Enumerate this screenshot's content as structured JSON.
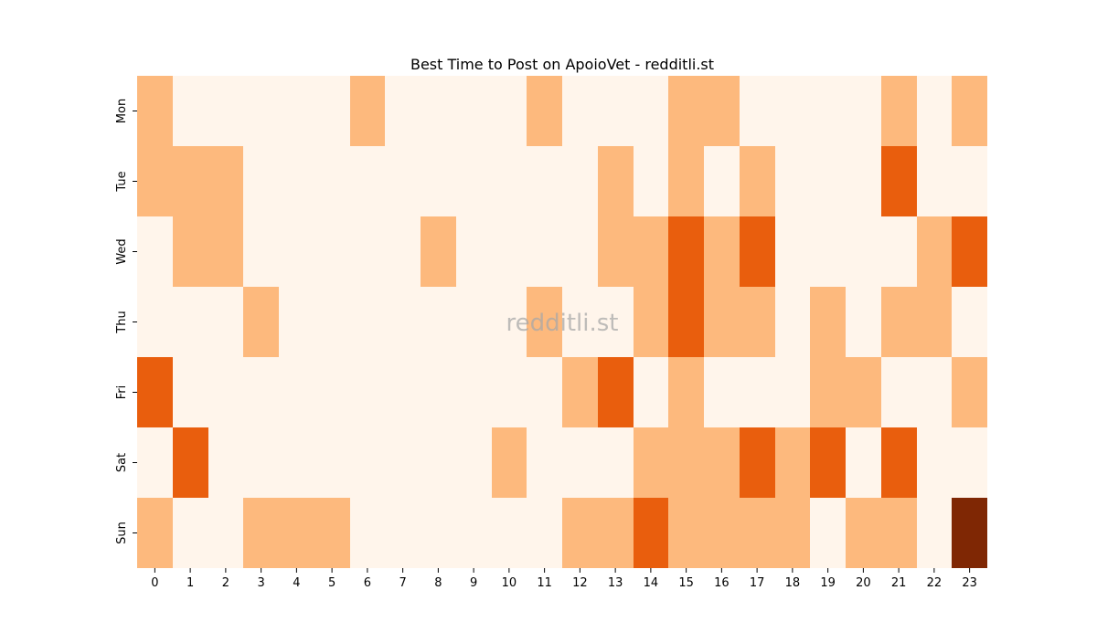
{
  "chart_data": {
    "type": "heatmap",
    "title": "Best Time to Post on ApoioVet - redditli.st",
    "xlabel": "",
    "ylabel": "",
    "x_categories": [
      "0",
      "1",
      "2",
      "3",
      "4",
      "5",
      "6",
      "7",
      "8",
      "9",
      "10",
      "11",
      "12",
      "13",
      "14",
      "15",
      "16",
      "17",
      "18",
      "19",
      "20",
      "21",
      "22",
      "23"
    ],
    "y_categories": [
      "Mon",
      "Tue",
      "Wed",
      "Thu",
      "Fri",
      "Sat",
      "Sun"
    ],
    "values": [
      [
        1,
        0,
        0,
        0,
        0,
        0,
        1,
        0,
        0,
        0,
        0,
        1,
        0,
        0,
        0,
        1,
        1,
        0,
        0,
        0,
        0,
        1,
        0,
        1
      ],
      [
        1,
        1,
        1,
        0,
        0,
        0,
        0,
        0,
        0,
        0,
        0,
        0,
        0,
        1,
        0,
        1,
        0,
        1,
        0,
        0,
        0,
        2,
        0,
        0
      ],
      [
        0,
        1,
        1,
        0,
        0,
        0,
        0,
        0,
        1,
        0,
        0,
        0,
        0,
        1,
        1,
        2,
        1,
        2,
        0,
        0,
        0,
        0,
        1,
        2
      ],
      [
        0,
        0,
        0,
        1,
        0,
        0,
        0,
        0,
        0,
        0,
        0,
        1,
        0,
        0,
        1,
        2,
        1,
        1,
        0,
        1,
        0,
        1,
        1,
        0
      ],
      [
        2,
        0,
        0,
        0,
        0,
        0,
        0,
        0,
        0,
        0,
        0,
        0,
        1,
        2,
        0,
        1,
        0,
        0,
        0,
        1,
        1,
        0,
        0,
        1
      ],
      [
        0,
        2,
        0,
        0,
        0,
        0,
        0,
        0,
        0,
        0,
        1,
        0,
        0,
        0,
        1,
        1,
        1,
        2,
        1,
        2,
        0,
        2,
        0,
        0
      ],
      [
        1,
        0,
        0,
        1,
        1,
        1,
        0,
        0,
        0,
        0,
        0,
        0,
        1,
        1,
        2,
        1,
        1,
        1,
        1,
        0,
        1,
        1,
        0,
        3
      ]
    ],
    "colorscale": [
      "#fff5eb",
      "#fdb97d",
      "#e95e0d",
      "#7f2704"
    ],
    "colorbar": false,
    "grid": false,
    "watermark": "redditli.st"
  }
}
